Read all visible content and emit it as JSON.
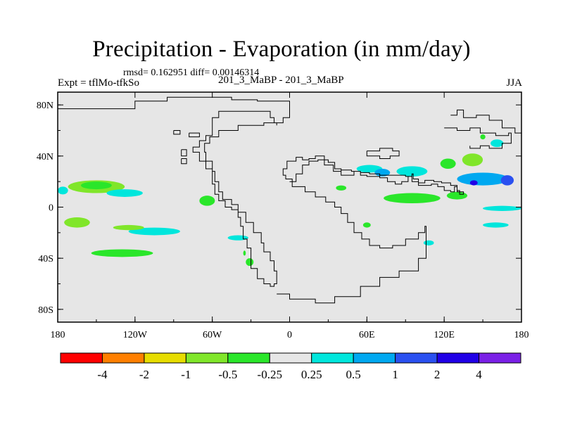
{
  "chart_data": {
    "type": "heatmap",
    "title": "Precipitation - Evaporation (in mm/day)",
    "stats_text": "rmsd= 0.162951 diff= 0.00146314",
    "left_subtitle": "Expt = tflMo-tfkSo",
    "center_subtitle": "201_3_MaBP - 201_3_MaBP",
    "right_subtitle": "JJA",
    "x_ticks": [
      {
        "value": -180,
        "label": "180"
      },
      {
        "value": -120,
        "label": "120W"
      },
      {
        "value": -60,
        "label": "60W"
      },
      {
        "value": 0,
        "label": "0"
      },
      {
        "value": 60,
        "label": "60E"
      },
      {
        "value": 120,
        "label": "120E"
      },
      {
        "value": 180,
        "label": "180"
      }
    ],
    "y_ticks": [
      {
        "value": 80,
        "label": "80N"
      },
      {
        "value": 40,
        "label": "40N"
      },
      {
        "value": 0,
        "label": "0"
      },
      {
        "value": -40,
        "label": "40S"
      },
      {
        "value": -80,
        "label": "80S"
      }
    ],
    "xlim": [
      -180,
      180
    ],
    "ylim": [
      -90,
      90
    ],
    "colorbar": {
      "colors": [
        "#ff0000",
        "#ff7f00",
        "#e6dc00",
        "#80e62a",
        "#2ae62a",
        "#e6e6e6",
        "#00e6dc",
        "#00a8f0",
        "#2a50f0",
        "#2000e6",
        "#7a20e6"
      ],
      "labels": [
        "-4",
        "-2",
        "-1",
        "-0.5",
        "-0.25",
        "0.25",
        "0.5",
        "1",
        "2",
        "4"
      ]
    },
    "anomaly_regions": [
      {
        "id": "pac-n-a",
        "lon": -150,
        "lat": 16,
        "rlon": 22,
        "rlat": 5,
        "color": "#80e62a"
      },
      {
        "id": "pac-n-a-core",
        "lon": -150,
        "lat": 17,
        "rlon": 12,
        "rlat": 3,
        "color": "#2ae62a"
      },
      {
        "id": "pac-n-b",
        "lon": -176,
        "lat": 13,
        "rlon": 4,
        "rlat": 3,
        "color": "#00e6dc"
      },
      {
        "id": "pac-n-c",
        "lon": -128,
        "lat": 11,
        "rlon": 14,
        "rlat": 3,
        "color": "#00e6dc"
      },
      {
        "id": "pac-s-a",
        "lon": -105,
        "lat": -19,
        "rlon": 20,
        "rlat": 3,
        "color": "#00e6dc"
      },
      {
        "id": "pac-s-b",
        "lon": -165,
        "lat": -12,
        "rlon": 10,
        "rlat": 4,
        "color": "#80e62a"
      },
      {
        "id": "pac-s-c",
        "lon": -125,
        "lat": -16,
        "rlon": 12,
        "rlat": 2,
        "color": "#80e62a"
      },
      {
        "id": "pac-s-d",
        "lon": -40,
        "lat": -24,
        "rlon": 8,
        "rlat": 2,
        "color": "#00e6dc"
      },
      {
        "id": "pac-s-e",
        "lon": -130,
        "lat": -36,
        "rlon": 24,
        "rlat": 3,
        "color": "#2ae62a"
      },
      {
        "id": "cam-a",
        "lon": -64,
        "lat": 5,
        "rlon": 6,
        "rlat": 4,
        "color": "#2ae62a"
      },
      {
        "id": "sam-a",
        "lon": -31,
        "lat": -43,
        "rlon": 3,
        "rlat": 3,
        "color": "#2ae62a"
      },
      {
        "id": "sam-b",
        "lon": -35,
        "lat": -36,
        "rlon": 1,
        "rlat": 2,
        "color": "#2ae62a"
      },
      {
        "id": "ind-n-a",
        "lon": 62,
        "lat": 30,
        "rlon": 10,
        "rlat": 3,
        "color": "#00e6dc"
      },
      {
        "id": "ind-n-b",
        "lon": 72,
        "lat": 27,
        "rlon": 6,
        "rlat": 3,
        "color": "#00a8f0"
      },
      {
        "id": "ind-n-c",
        "lon": 95,
        "lat": 28,
        "rlon": 12,
        "rlat": 4,
        "color": "#00e6dc"
      },
      {
        "id": "ind-n-d",
        "lon": 123,
        "lat": 34,
        "rlon": 6,
        "rlat": 4,
        "color": "#2ae62a"
      },
      {
        "id": "ind-n-e",
        "lon": 142,
        "lat": 37,
        "rlon": 8,
        "rlat": 5,
        "color": "#80e62a"
      },
      {
        "id": "ind-n-f",
        "lon": 150,
        "lat": 22,
        "rlon": 20,
        "rlat": 5,
        "color": "#00a8f0"
      },
      {
        "id": "ind-n-g",
        "lon": 169,
        "lat": 21,
        "rlon": 5,
        "rlat": 4,
        "color": "#2a50f0"
      },
      {
        "id": "ind-n-h",
        "lon": 143,
        "lat": 19,
        "rlon": 3,
        "rlat": 2,
        "color": "#2000e6"
      },
      {
        "id": "ind-eq-a",
        "lon": 95,
        "lat": 7,
        "rlon": 22,
        "rlat": 4,
        "color": "#2ae62a"
      },
      {
        "id": "ind-eq-b",
        "lon": 130,
        "lat": 9,
        "rlon": 8,
        "rlat": 3,
        "color": "#2ae62a"
      },
      {
        "id": "ind-s-a",
        "lon": 165,
        "lat": -1,
        "rlon": 15,
        "rlat": 2,
        "color": "#00e6dc"
      },
      {
        "id": "ind-s-b",
        "lon": 160,
        "lat": -14,
        "rlon": 10,
        "rlat": 2,
        "color": "#00e6dc"
      },
      {
        "id": "ind-s-c",
        "lon": 108,
        "lat": -28,
        "rlon": 4,
        "rlat": 2,
        "color": "#00e6dc"
      },
      {
        "id": "ind-s-d",
        "lon": 60,
        "lat": -14,
        "rlon": 3,
        "rlat": 2,
        "color": "#2ae62a"
      },
      {
        "id": "atl-n-a",
        "lon": 40,
        "lat": 15,
        "rlon": 4,
        "rlat": 2,
        "color": "#2ae62a"
      },
      {
        "id": "nep-a",
        "lon": 161,
        "lat": 50,
        "rlon": 5,
        "rlat": 3,
        "color": "#00e6dc"
      },
      {
        "id": "nep-b",
        "lon": 150,
        "lat": 55,
        "rlon": 2,
        "rlat": 2,
        "color": "#2ae62a"
      }
    ],
    "coastline": [
      {
        "id": "continent-west",
        "points": [
          [
            -180,
            77
          ],
          [
            -135,
            77
          ],
          [
            -120,
            83
          ],
          [
            -95,
            86
          ],
          [
            -65,
            86
          ],
          [
            -45,
            84
          ],
          [
            -25,
            83
          ],
          [
            0,
            80
          ],
          [
            0,
            70
          ],
          [
            -5,
            66
          ],
          [
            -10,
            66
          ],
          [
            -12,
            70
          ],
          [
            -15,
            75
          ],
          [
            -40,
            75
          ],
          [
            -55,
            70
          ],
          [
            -60,
            65
          ],
          [
            -60,
            56
          ],
          [
            -65,
            52
          ],
          [
            -70,
            47
          ],
          [
            -75,
            43
          ],
          [
            -70,
            36
          ],
          [
            -65,
            30
          ],
          [
            -60,
            18
          ],
          [
            -58,
            10
          ],
          [
            -55,
            5
          ],
          [
            -50,
            0
          ],
          [
            -45,
            -2
          ],
          [
            -40,
            -8
          ],
          [
            -38,
            -15
          ],
          [
            -36,
            -25
          ],
          [
            -33,
            -32
          ],
          [
            -30,
            -40
          ],
          [
            -30,
            -48
          ],
          [
            -25,
            -56
          ],
          [
            -20,
            -60
          ],
          [
            -15,
            -62
          ],
          [
            -12,
            -60
          ],
          [
            -10,
            -58
          ],
          [
            -10,
            -50
          ],
          [
            -12,
            -42
          ],
          [
            -15,
            -35
          ],
          [
            -20,
            -28
          ],
          [
            -22,
            -20
          ],
          [
            -28,
            -12
          ],
          [
            -34,
            -4
          ],
          [
            -40,
            2
          ],
          [
            -45,
            6
          ],
          [
            -52,
            12
          ],
          [
            -55,
            20
          ],
          [
            -58,
            28
          ],
          [
            -60,
            36
          ],
          [
            -65,
            43
          ],
          [
            -66,
            50
          ],
          [
            -62,
            55
          ],
          [
            -55,
            60
          ],
          [
            -40,
            64
          ],
          [
            -20,
            66
          ],
          [
            -10,
            64
          ]
        ]
      },
      {
        "id": "continent-east",
        "points": [
          [
            0,
            20
          ],
          [
            5,
            26
          ],
          [
            10,
            33
          ],
          [
            15,
            36
          ],
          [
            22,
            37
          ],
          [
            30,
            35
          ],
          [
            35,
            30
          ],
          [
            40,
            25
          ],
          [
            45,
            25
          ],
          [
            50,
            28
          ],
          [
            55,
            25
          ],
          [
            60,
            24
          ],
          [
            70,
            25
          ],
          [
            80,
            25
          ],
          [
            90,
            24
          ],
          [
            95,
            20
          ],
          [
            100,
            17
          ],
          [
            105,
            17
          ],
          [
            110,
            18
          ],
          [
            115,
            16
          ],
          [
            120,
            13
          ],
          [
            125,
            12
          ],
          [
            128,
            16
          ],
          [
            130,
            13
          ],
          [
            132,
            10
          ],
          [
            135,
            12
          ],
          [
            130,
            17
          ],
          [
            125,
            19
          ],
          [
            118,
            20
          ],
          [
            112,
            21
          ],
          [
            105,
            19
          ],
          [
            100,
            22
          ],
          [
            96,
            26
          ],
          [
            95,
            24
          ],
          [
            92,
            20
          ],
          [
            87,
            18
          ],
          [
            82,
            20
          ],
          [
            76,
            23
          ],
          [
            70,
            26
          ],
          [
            62,
            27
          ],
          [
            55,
            28
          ],
          [
            48,
            29
          ],
          [
            40,
            28
          ],
          [
            34,
            33
          ],
          [
            27,
            40
          ],
          [
            20,
            38
          ],
          [
            15,
            37
          ],
          [
            10,
            39
          ],
          [
            5,
            36
          ],
          [
            -2,
            30
          ],
          [
            -5,
            25
          ],
          [
            -3,
            22
          ],
          [
            2,
            16
          ],
          [
            12,
            12
          ],
          [
            20,
            8
          ],
          [
            28,
            4
          ],
          [
            35,
            0
          ],
          [
            40,
            -5
          ],
          [
            45,
            -12
          ],
          [
            50,
            -20
          ],
          [
            56,
            -25
          ],
          [
            62,
            -30
          ],
          [
            70,
            -32
          ],
          [
            80,
            -30
          ],
          [
            90,
            -25
          ],
          [
            100,
            -20
          ],
          [
            105,
            -15
          ],
          [
            106,
            -40
          ],
          [
            100,
            -50
          ],
          [
            85,
            -55
          ],
          [
            70,
            -62
          ],
          [
            55,
            -70
          ],
          [
            35,
            -75
          ],
          [
            20,
            -72
          ],
          [
            0,
            -68
          ],
          [
            -10,
            -68
          ]
        ]
      },
      {
        "id": "north-east",
        "points": [
          [
            125,
            72
          ],
          [
            130,
            76
          ],
          [
            135,
            70
          ],
          [
            145,
            72
          ],
          [
            155,
            68
          ],
          [
            165,
            62
          ],
          [
            175,
            58
          ],
          [
            180,
            55
          ]
        ]
      },
      {
        "id": "north-east-2",
        "points": [
          [
            120,
            62
          ],
          [
            130,
            60
          ],
          [
            140,
            62
          ],
          [
            148,
            58
          ],
          [
            160,
            56
          ],
          [
            170,
            58
          ],
          [
            172,
            50
          ],
          [
            165,
            46
          ],
          [
            155,
            48
          ],
          [
            148,
            46
          ],
          [
            140,
            48
          ]
        ]
      },
      {
        "id": "islands-a",
        "points": [
          [
            -90,
            60
          ],
          [
            -85,
            60
          ],
          [
            -85,
            57
          ],
          [
            -90,
            57
          ],
          [
            -90,
            60
          ]
        ]
      },
      {
        "id": "islands-b",
        "points": [
          [
            -84,
            45
          ],
          [
            -80,
            45
          ],
          [
            -80,
            40
          ],
          [
            -84,
            40
          ],
          [
            -84,
            45
          ]
        ]
      },
      {
        "id": "islands-c",
        "points": [
          [
            -84,
            38
          ],
          [
            -80,
            38
          ],
          [
            -80,
            34
          ],
          [
            -84,
            34
          ],
          [
            -84,
            38
          ]
        ]
      },
      {
        "id": "islands-d",
        "points": [
          [
            -78,
            58
          ],
          [
            -70,
            58
          ],
          [
            -70,
            55
          ],
          [
            -78,
            55
          ],
          [
            -78,
            58
          ]
        ]
      },
      {
        "id": "sea-a",
        "points": [
          [
            60,
            44
          ],
          [
            70,
            46
          ],
          [
            80,
            44
          ],
          [
            85,
            40
          ],
          [
            78,
            38
          ],
          [
            70,
            40
          ],
          [
            60,
            42
          ],
          [
            60,
            44
          ]
        ]
      }
    ]
  }
}
